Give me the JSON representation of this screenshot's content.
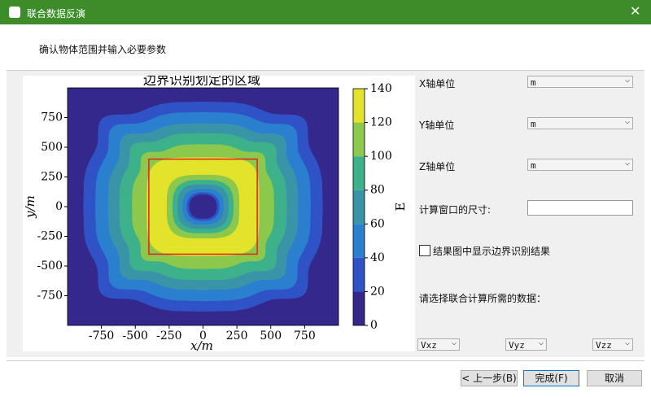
{
  "window": {
    "title": "联合数据反演"
  },
  "header": {
    "subtitle": "确认物体范围并输入必要参数"
  },
  "form": {
    "x_unit": {
      "label": "X轴单位",
      "value": "m"
    },
    "y_unit": {
      "label": "Y轴单位",
      "value": "m"
    },
    "z_unit": {
      "label": "Z轴单位",
      "value": "m"
    },
    "window_size": {
      "label": "计算窗口的尺寸:"
    },
    "show_boundary": {
      "label": "结果图中显示边界识别结果",
      "checked": false
    },
    "data_prompt": "请选择联合计算所需的数据：",
    "data_selects": [
      "Vxz",
      "Vyz",
      "Vzz"
    ]
  },
  "buttons": {
    "back": "< 上一步(B)",
    "finish": "完成(F)",
    "cancel": "取消"
  },
  "chart_data": {
    "type": "contour",
    "title": "边界识别划定的区域",
    "x_label": "x/m",
    "y_label": "y/m",
    "xlim": [
      -1000,
      1000
    ],
    "ylim": [
      -1000,
      1000
    ],
    "xticks": [
      -750,
      -500,
      -250,
      0,
      250,
      500,
      750
    ],
    "yticks": [
      -750,
      -500,
      -250,
      0,
      250,
      500,
      750
    ],
    "colorbar": {
      "label": "E",
      "lim": [
        0,
        140
      ],
      "ticks": [
        0,
        20,
        40,
        60,
        80,
        100,
        120,
        140
      ],
      "colors": [
        "#35288c",
        "#2f52c6",
        "#2a7fcf",
        "#3a94a8",
        "#3cb18a",
        "#8cc84b",
        "#e4e32b"
      ]
    },
    "boundary": {
      "x": [
        -400,
        400
      ],
      "y": [
        -400,
        400
      ],
      "color": "#e0241c"
    }
  }
}
